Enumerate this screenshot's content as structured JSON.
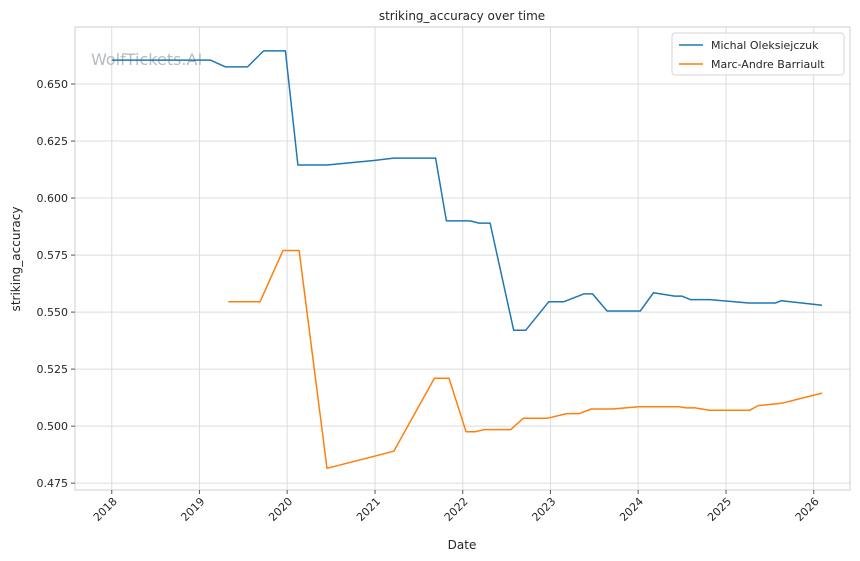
{
  "watermark": "WolfTickets.AI",
  "chart_data": {
    "type": "line",
    "title": "striking_accuracy over time",
    "xlabel": "Date",
    "ylabel": "striking_accuracy",
    "x_type": "date",
    "xlim": [
      "2017-08-01",
      "2026-06-01"
    ],
    "ylim": [
      0.472,
      0.675
    ],
    "x_ticks": [
      "2018-01-01",
      "2019-01-01",
      "2020-01-01",
      "2021-01-01",
      "2022-01-01",
      "2023-01-01",
      "2024-01-01",
      "2025-01-01",
      "2026-01-01"
    ],
    "x_tick_labels": [
      "2018",
      "2019",
      "2020",
      "2021",
      "2022",
      "2023",
      "2024",
      "2025",
      "2026"
    ],
    "y_ticks": [
      0.475,
      0.5,
      0.525,
      0.55,
      0.575,
      0.6,
      0.625,
      0.65
    ],
    "y_tick_labels": [
      "0.475",
      "0.500",
      "0.525",
      "0.550",
      "0.575",
      "0.600",
      "0.625",
      "0.650"
    ],
    "grid": true,
    "legend_position": "top-right",
    "series": [
      {
        "name": "Michal Oleksiejczuk",
        "color": "#1f77b4",
        "points": [
          [
            "2018-01-01",
            0.6605
          ],
          [
            "2019-01-01",
            0.6605
          ],
          [
            "2019-02-15",
            0.6605
          ],
          [
            "2019-04-20",
            0.6575
          ],
          [
            "2019-07-20",
            0.6575
          ],
          [
            "2019-09-25",
            0.6645
          ],
          [
            "2019-12-25",
            0.6645
          ],
          [
            "2020-02-15",
            0.6145
          ],
          [
            "2020-06-15",
            0.6145
          ],
          [
            "2021-01-01",
            0.6165
          ],
          [
            "2021-03-20",
            0.6175
          ],
          [
            "2021-09-10",
            0.6175
          ],
          [
            "2021-10-25",
            0.59
          ],
          [
            "2022-02-01",
            0.59
          ],
          [
            "2022-03-10",
            0.589
          ],
          [
            "2022-04-25",
            0.589
          ],
          [
            "2022-08-01",
            0.542
          ],
          [
            "2022-09-20",
            0.542
          ],
          [
            "2022-12-25",
            0.5545
          ],
          [
            "2023-02-25",
            0.5545
          ],
          [
            "2023-05-20",
            0.558
          ],
          [
            "2023-06-25",
            0.558
          ],
          [
            "2023-08-25",
            0.5505
          ],
          [
            "2024-01-10",
            0.5505
          ],
          [
            "2024-03-05",
            0.5585
          ],
          [
            "2024-06-01",
            0.557
          ],
          [
            "2024-07-01",
            0.557
          ],
          [
            "2024-08-05",
            0.5555
          ],
          [
            "2024-10-25",
            0.5555
          ],
          [
            "2025-04-05",
            0.554
          ],
          [
            "2025-07-25",
            0.554
          ],
          [
            "2025-08-20",
            0.555
          ],
          [
            "2026-02-05",
            0.553
          ]
        ]
      },
      {
        "name": "Marc-Andre Barriault",
        "color": "#ff7f0e",
        "points": [
          [
            "2019-05-01",
            0.5545
          ],
          [
            "2019-09-10",
            0.5545
          ],
          [
            "2019-12-15",
            0.577
          ],
          [
            "2020-02-20",
            0.577
          ],
          [
            "2020-06-15",
            0.4815
          ],
          [
            "2021-03-20",
            0.489
          ],
          [
            "2021-09-05",
            0.521
          ],
          [
            "2021-11-05",
            0.521
          ],
          [
            "2022-01-15",
            0.4975
          ],
          [
            "2022-02-20",
            0.4975
          ],
          [
            "2022-04-01",
            0.4985
          ],
          [
            "2022-07-20",
            0.4985
          ],
          [
            "2022-09-10",
            0.5035
          ],
          [
            "2022-12-20",
            0.5035
          ],
          [
            "2023-03-10",
            0.5055
          ],
          [
            "2023-05-01",
            0.5055
          ],
          [
            "2023-06-20",
            0.5075
          ],
          [
            "2023-09-15",
            0.5075
          ],
          [
            "2024-01-01",
            0.5085
          ],
          [
            "2024-06-20",
            0.5085
          ],
          [
            "2024-07-20",
            0.508
          ],
          [
            "2024-08-25",
            0.508
          ],
          [
            "2024-10-25",
            0.507
          ],
          [
            "2025-04-10",
            0.507
          ],
          [
            "2025-05-15",
            0.509
          ],
          [
            "2025-08-20",
            0.51
          ],
          [
            "2026-02-05",
            0.5145
          ]
        ]
      }
    ]
  }
}
